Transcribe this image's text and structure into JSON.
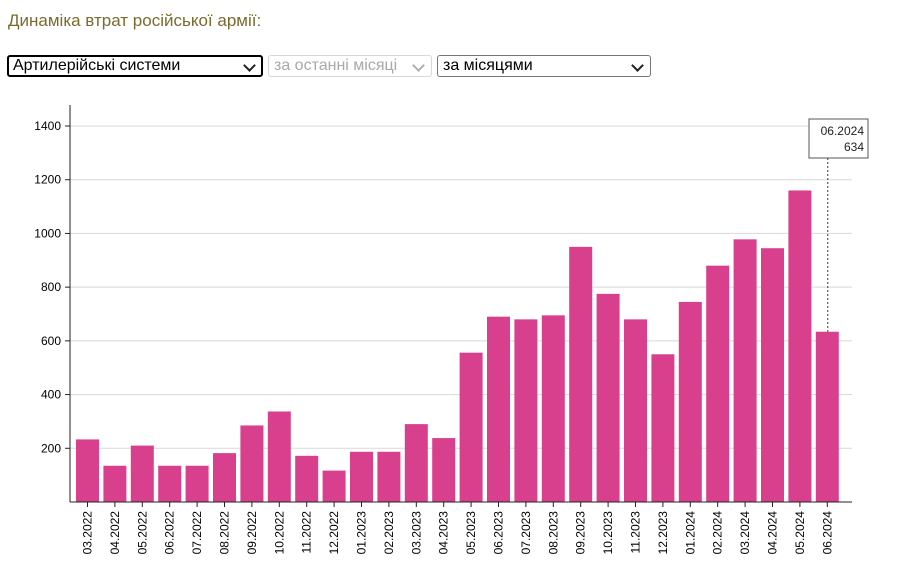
{
  "header": {
    "title": "Динаміка втрат російської армії:"
  },
  "controls": {
    "category": "Артилерійські системи",
    "period": "за останні місяці",
    "grouping": "за місяцями"
  },
  "tooltip": {
    "date": "06.2024",
    "value": "634"
  },
  "colors": {
    "bar": "#d8408e",
    "grid": "#d8d8d8",
    "axis": "#222222"
  },
  "chart_data": {
    "type": "bar",
    "title": "",
    "xlabel": "",
    "ylabel": "",
    "ylim": [
      0,
      1400
    ],
    "yticks": [
      200,
      400,
      600,
      800,
      1000,
      1200,
      1400
    ],
    "grid": true,
    "categories": [
      "03.2022",
      "04.2022",
      "05.2022",
      "06.2022",
      "07.2022",
      "08.2022",
      "09.2022",
      "10.2022",
      "11.2022",
      "12.2022",
      "01.2023",
      "02.2023",
      "03.2023",
      "04.2023",
      "05.2023",
      "06.2023",
      "07.2023",
      "08.2023",
      "09.2023",
      "10.2023",
      "11.2023",
      "12.2023",
      "01.2024",
      "02.2024",
      "03.2024",
      "04.2024",
      "05.2024",
      "06.2024"
    ],
    "values": [
      233,
      135,
      210,
      135,
      135,
      182,
      285,
      337,
      172,
      117,
      187,
      187,
      290,
      238,
      556,
      690,
      680,
      695,
      950,
      775,
      680,
      550,
      745,
      880,
      978,
      945,
      1160,
      634
    ]
  }
}
